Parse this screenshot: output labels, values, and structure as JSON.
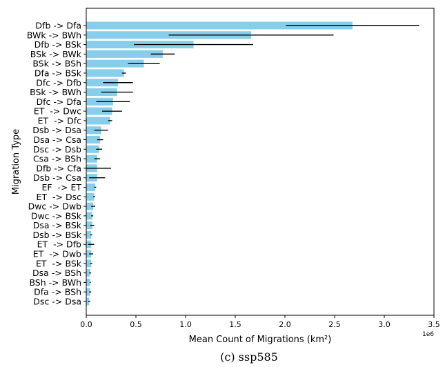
{
  "chart_data": {
    "type": "bar",
    "orientation": "horizontal",
    "categories": [
      "Dfb -> Dfa",
      "BWk -> BWh",
      "Dfb -> BSk",
      "BSk -> BWk",
      "BSk -> BSh",
      "Dfa -> BSk",
      "Dfc -> Dfb",
      "BSk -> BWh",
      "Dfc -> Dfa",
      "ET  -> Dwc",
      "ET  -> Dfc",
      "Dsb -> Dsa",
      "Dsa -> Csa",
      "Dsc -> Dsb",
      "Csa -> BSh",
      "Dfb -> Cfa",
      "Dsb -> Csa",
      "EF  -> ET",
      "ET  -> Dsc",
      "Dwc -> Dwb",
      "Dwc -> BSk",
      "Dsa -> BSk",
      "Dsb -> BSk",
      "ET  -> Dfb",
      "ET  -> Dwb",
      "ET  -> BSk",
      "Dsa -> BSh",
      "BSh -> BWh",
      "Dfa -> BSh",
      "Dsc -> Dsa"
    ],
    "values": [
      2680000,
      1660000,
      1080000,
      770000,
      580000,
      380000,
      320000,
      310000,
      270000,
      260000,
      240000,
      150000,
      140000,
      130000,
      110000,
      110000,
      110000,
      90000,
      80000,
      70000,
      60000,
      60000,
      50000,
      50000,
      50000,
      50000,
      40000,
      40000,
      40000,
      30000
    ],
    "errors": [
      670000,
      830000,
      600000,
      120000,
      160000,
      20000,
      150000,
      160000,
      170000,
      100000,
      20000,
      70000,
      30000,
      30000,
      30000,
      140000,
      80000,
      10000,
      10000,
      20000,
      10000,
      20000,
      10000,
      30000,
      20000,
      10000,
      10000,
      5000,
      10000,
      10000
    ],
    "xlabel": "Mean Count of Migrations (km²)",
    "ylabel": "Migration Type",
    "xlim": [
      0,
      3500000
    ],
    "xticks": [
      "0.0",
      "0.5",
      "1.0",
      "1.5",
      "2.0",
      "2.5",
      "3.0",
      "3.5"
    ],
    "xtick_values": [
      0,
      500000,
      1000000,
      1500000,
      2000000,
      2500000,
      3000000,
      3500000
    ],
    "offset_text": "1e6",
    "grid": false,
    "bar_color": "#87CEEB",
    "error_color": "#000000"
  },
  "caption": "(c) ssp585"
}
